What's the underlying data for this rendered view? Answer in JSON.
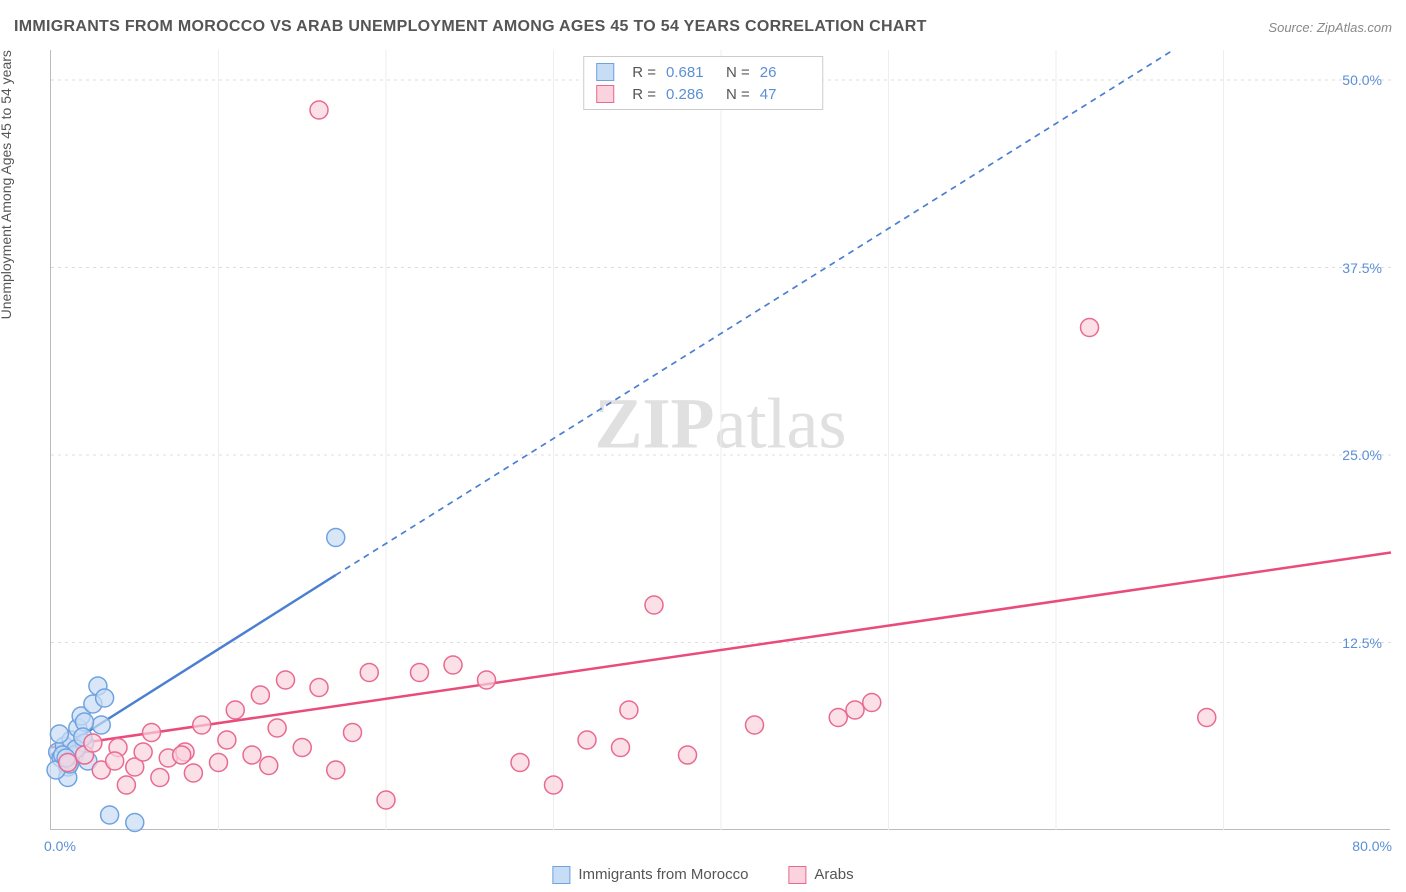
{
  "title": "IMMIGRANTS FROM MOROCCO VS ARAB UNEMPLOYMENT AMONG AGES 45 TO 54 YEARS CORRELATION CHART",
  "source_label": "Source:",
  "source_value": "ZipAtlas.com",
  "ylabel": "Unemployment Among Ages 45 to 54 years",
  "watermark_bold": "ZIP",
  "watermark_light": "atlas",
  "chart": {
    "type": "scatter",
    "background_color": "#ffffff",
    "grid_color": "#dddddd",
    "axis_color": "#bbbbbb",
    "tick_label_color": "#5b8fd6",
    "text_color": "#555555",
    "title_fontsize": 16,
    "label_fontsize": 14,
    "marker_radius": 9,
    "marker_stroke_width": 1.5,
    "xlim": [
      0,
      80
    ],
    "ylim": [
      0,
      52
    ],
    "yticks": [
      12.5,
      25.0,
      37.5,
      50.0
    ],
    "ytick_labels": [
      "12.5%",
      "25.0%",
      "37.5%",
      "50.0%"
    ],
    "xtick_min_label": "0.0%",
    "xtick_max_label": "80.0%",
    "vgrid_x": [
      10,
      20,
      30,
      40,
      50,
      60,
      70
    ],
    "series": [
      {
        "name": "Immigrants from Morocco",
        "fill_color": "#c7dcf5",
        "stroke_color": "#6fa3e0",
        "swatch_fill": "#c7dcf5",
        "swatch_border": "#6fa3e0",
        "r_value": "0.681",
        "n_value": "26",
        "trend": {
          "solid_x1": 0,
          "solid_y1": 5,
          "solid_x2": 17,
          "solid_y2": 17,
          "dash_x1": 17,
          "dash_y1": 17,
          "dash_x2": 67,
          "dash_y2": 52,
          "stroke": "#4a7fd1",
          "width": 2.5,
          "dash_pattern": "6 5"
        },
        "points": [
          [
            0.4,
            5.2
          ],
          [
            0.6,
            4.8
          ],
          [
            0.8,
            5.6
          ],
          [
            1.0,
            4.2
          ],
          [
            1.2,
            6.0
          ],
          [
            1.4,
            5.0
          ],
          [
            1.6,
            6.8
          ],
          [
            1.8,
            7.6
          ],
          [
            2.0,
            5.8
          ],
          [
            2.2,
            4.6
          ],
          [
            2.5,
            8.4
          ],
          [
            2.8,
            9.6
          ],
          [
            3.0,
            7.0
          ],
          [
            3.2,
            8.8
          ],
          [
            1.0,
            3.5
          ],
          [
            0.5,
            6.4
          ],
          [
            0.3,
            4.0
          ],
          [
            1.5,
            5.4
          ],
          [
            2.0,
            7.2
          ],
          [
            0.7,
            5.0
          ],
          [
            1.1,
            4.4
          ],
          [
            1.9,
            6.2
          ],
          [
            3.5,
            1.0
          ],
          [
            5.0,
            0.5
          ],
          [
            0.9,
            4.8
          ],
          [
            17.0,
            19.5
          ]
        ]
      },
      {
        "name": "Arabs",
        "fill_color": "#fbd3de",
        "stroke_color": "#e86a8f",
        "swatch_fill": "#fbd3de",
        "swatch_border": "#e86a8f",
        "r_value": "0.286",
        "n_value": "47",
        "trend": {
          "solid_x1": 0,
          "solid_y1": 5.5,
          "solid_x2": 80,
          "solid_y2": 18.5,
          "dash_x1": 0,
          "dash_y1": 0,
          "dash_x2": 0,
          "dash_y2": 0,
          "stroke": "#e94b7a",
          "width": 2.5,
          "dash_pattern": ""
        },
        "points": [
          [
            1.0,
            4.5
          ],
          [
            2.0,
            5.0
          ],
          [
            3.0,
            4.0
          ],
          [
            4.0,
            5.5
          ],
          [
            5.0,
            4.2
          ],
          [
            6.0,
            6.5
          ],
          [
            7.0,
            4.8
          ],
          [
            8.0,
            5.2
          ],
          [
            9.0,
            7.0
          ],
          [
            10.0,
            4.5
          ],
          [
            11.0,
            8.0
          ],
          [
            12.0,
            5.0
          ],
          [
            12.5,
            9.0
          ],
          [
            13.0,
            4.3
          ],
          [
            14.0,
            10.0
          ],
          [
            15.0,
            5.5
          ],
          [
            16.0,
            9.5
          ],
          [
            17.0,
            4.0
          ],
          [
            18.0,
            6.5
          ],
          [
            19.0,
            10.5
          ],
          [
            6.5,
            3.5
          ],
          [
            8.5,
            3.8
          ],
          [
            4.5,
            3.0
          ],
          [
            20.0,
            2.0
          ],
          [
            22.0,
            10.5
          ],
          [
            24.0,
            11.0
          ],
          [
            26.0,
            10.0
          ],
          [
            28.0,
            4.5
          ],
          [
            30.0,
            3.0
          ],
          [
            32.0,
            6.0
          ],
          [
            34.0,
            5.5
          ],
          [
            34.5,
            8.0
          ],
          [
            36.0,
            15.0
          ],
          [
            38.0,
            5.0
          ],
          [
            42.0,
            7.0
          ],
          [
            47.0,
            7.5
          ],
          [
            48.0,
            8.0
          ],
          [
            49.0,
            8.5
          ],
          [
            62.0,
            33.5
          ],
          [
            69.0,
            7.5
          ],
          [
            16.0,
            48.0
          ],
          [
            2.5,
            5.8
          ],
          [
            3.8,
            4.6
          ],
          [
            5.5,
            5.2
          ],
          [
            10.5,
            6.0
          ],
          [
            13.5,
            6.8
          ],
          [
            7.8,
            5.0
          ]
        ]
      }
    ],
    "x_legend_r_label": "R =",
    "x_legend_n_label": "N ="
  }
}
